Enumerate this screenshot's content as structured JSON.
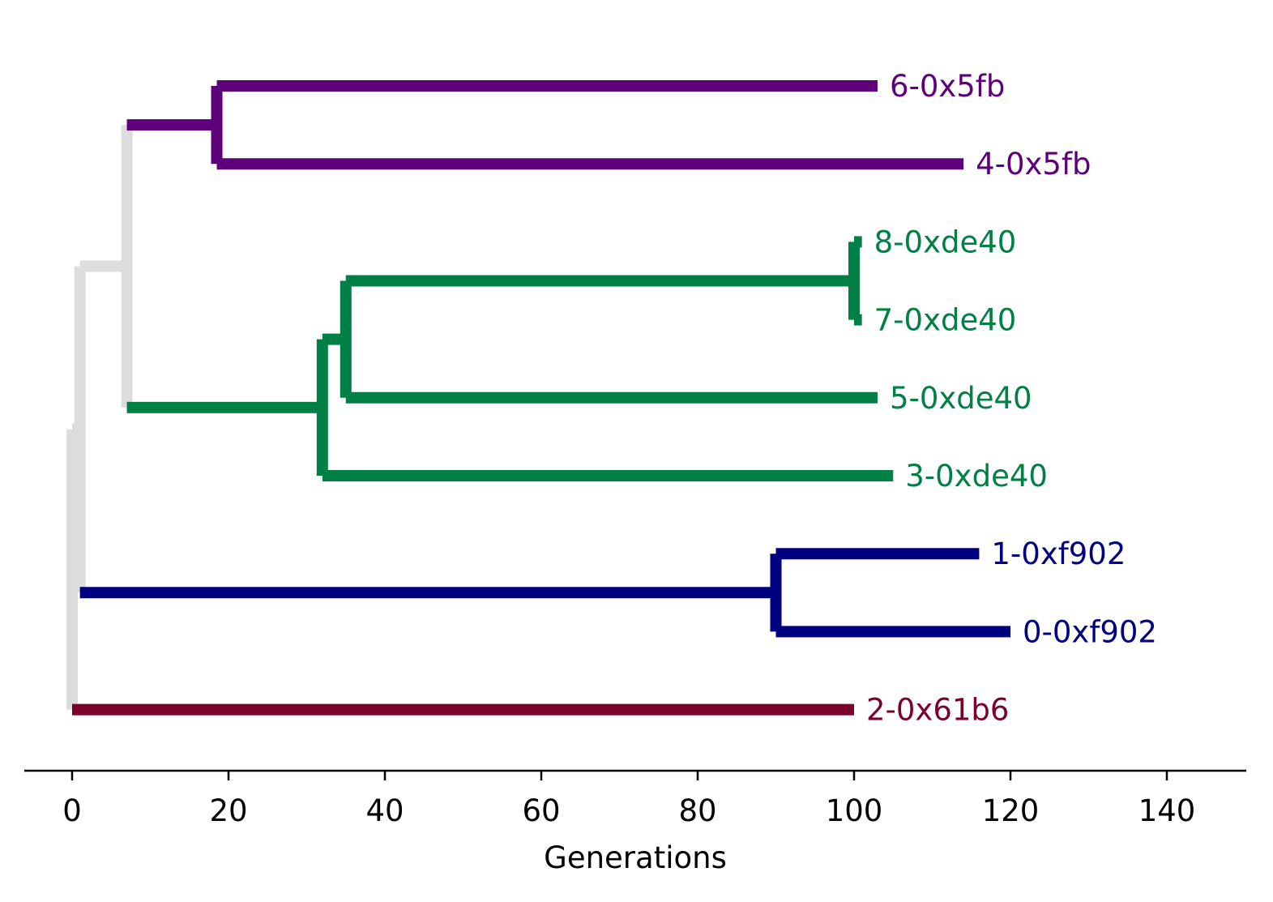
{
  "chart_data": {
    "type": "dendrogram",
    "orientation": "horizontal",
    "title": "",
    "xlabel": "Generations",
    "ylabel": "",
    "xlim": [
      -6,
      150
    ],
    "xticks": [
      0,
      20,
      40,
      60,
      80,
      100,
      120,
      140
    ],
    "grid": false,
    "leaves": [
      {
        "name": "6-0x5fb",
        "x": 103,
        "color": "#5e0079"
      },
      {
        "name": "4-0x5fb",
        "x": 114,
        "color": "#5e0079"
      },
      {
        "name": "8-0xde40",
        "x": 101,
        "color": "#008045"
      },
      {
        "name": "7-0xde40",
        "x": 101,
        "color": "#008045"
      },
      {
        "name": "5-0xde40",
        "x": 103,
        "color": "#008045"
      },
      {
        "name": "3-0xde40",
        "x": 105,
        "color": "#008045"
      },
      {
        "name": "1-0xf902",
        "x": 116,
        "color": "#000080"
      },
      {
        "name": "0-0xf902",
        "x": 120,
        "color": "#000080"
      },
      {
        "name": "2-0x61b6",
        "x": 100,
        "color": "#7b002c"
      }
    ],
    "internal_nodes": [
      {
        "id": "n_5fb",
        "x": 18.5,
        "children": [
          "6-0x5fb",
          "4-0x5fb"
        ],
        "color": "#5e0079"
      },
      {
        "id": "n_87",
        "x": 100,
        "children": [
          "8-0xde40",
          "7-0xde40"
        ],
        "color": "#008045"
      },
      {
        "id": "n_875",
        "x": 35,
        "children": [
          "n_87",
          "5-0xde40"
        ],
        "color": "#008045"
      },
      {
        "id": "n_de40",
        "x": 32,
        "children": [
          "n_875",
          "3-0xde40"
        ],
        "color": "#008045"
      },
      {
        "id": "n_upper",
        "x": 7,
        "children": [
          "n_5fb",
          "n_de40"
        ],
        "color": "#dddddd"
      },
      {
        "id": "n_f902",
        "x": 90,
        "children": [
          "1-0xf902",
          "0-0xf902"
        ],
        "color": "#000080"
      },
      {
        "id": "n_mid",
        "x": 1,
        "children": [
          "n_upper",
          "n_f902"
        ],
        "color": "#dddddd"
      },
      {
        "id": "root",
        "x": 0,
        "children": [
          "n_mid",
          "2-0x61b6"
        ],
        "color": "#dddddd"
      }
    ]
  }
}
